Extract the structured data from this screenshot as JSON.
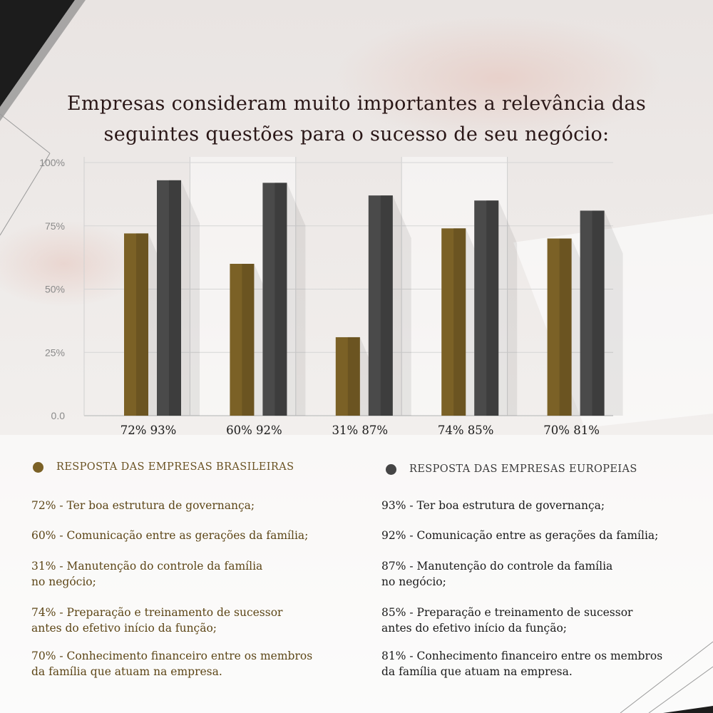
{
  "title": {
    "line1": "Empresas consideram muito importantes a relevância das",
    "line2": "seguintes questões para o sucesso de seu negócio:"
  },
  "colors": {
    "brazil": "#7b6126",
    "europe": "#4a4a4a",
    "title": "#2a1717"
  },
  "chart_data": {
    "type": "bar",
    "categories": [
      "",
      "",
      "",
      "",
      ""
    ],
    "y_tick_labels": [
      "0.0",
      "25%",
      "50%",
      "75%",
      "100%"
    ],
    "ylim": [
      0,
      100
    ],
    "grid": true,
    "series": [
      {
        "name": "RESPOSTA DAS EMPRESAS BRASILEIRAS",
        "values": [
          72,
          60,
          31,
          74,
          70
        ]
      },
      {
        "name": "RESPOSTA DAS EMPRESAS EUROPEIAS",
        "values": [
          93,
          92,
          87,
          85,
          81
        ]
      }
    ],
    "value_labels": [
      [
        "72%",
        "93%"
      ],
      [
        "60%",
        "92%"
      ],
      [
        "31%",
        "87%"
      ],
      [
        "74%",
        "85%"
      ],
      [
        "70%",
        "81%"
      ]
    ]
  },
  "legend": {
    "brazil": "RESPOSTA DAS EMPRESAS BRASILEIRAS",
    "europe": "RESPOSTA DAS EMPRESAS EUROPEIAS"
  },
  "descriptions": {
    "brazil": [
      "72% - Ter boa estrutura de governança;",
      "60% - Comunicação entre as gerações da família;",
      "31% - Manutenção do controle da família\nno negócio;",
      "74% - Preparação e treinamento de sucessor\nantes do efetivo início da função;",
      "70% - Conhecimento financeiro entre os membros\nda família que atuam na empresa."
    ],
    "europe": [
      " 93% - Ter boa estrutura de governança;",
      "92% - Comunicação entre as gerações da família;",
      "87% - Manutenção do controle da família\nno negócio;",
      "85% - Preparação e treinamento de sucessor\nantes do efetivo início da função;",
      "81% - Conhecimento financeiro entre os membros\nda família que atuam na empresa."
    ]
  }
}
